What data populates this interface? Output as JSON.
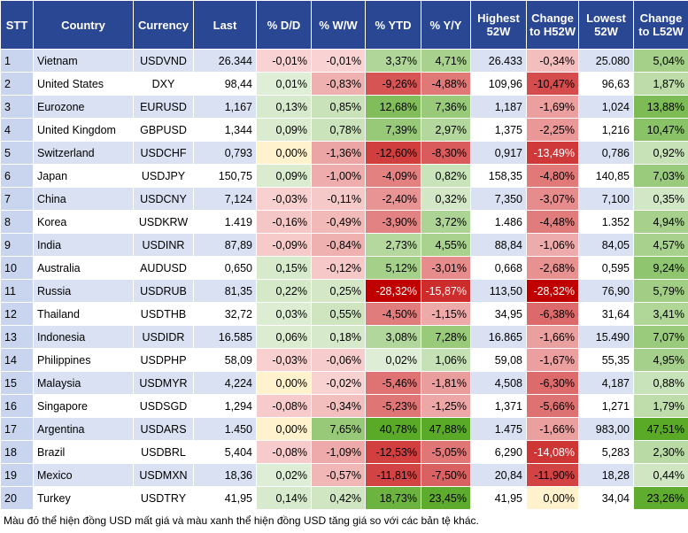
{
  "table": {
    "header": [
      "STT",
      "Country",
      "Currency",
      "Last",
      "% D/D",
      "% W/W",
      "% YTD",
      "% Y/Y",
      "Highest 52W",
      "Change to H52W",
      "Lowest 52W",
      "Change to L52W"
    ],
    "rows": [
      [
        "1",
        "Vietnam",
        "USDVND",
        "26.344",
        "-0,01%",
        "-0,01%",
        "3,37%",
        "4,71%",
        "26.433",
        "-0,34%",
        "25.080",
        "5,04%"
      ],
      [
        "2",
        "United States",
        "DXY",
        "98,44",
        "0,01%",
        "-0,83%",
        "-9,26%",
        "-4,88%",
        "109,96",
        "-10,47%",
        "96,63",
        "1,87%"
      ],
      [
        "3",
        "Eurozone",
        "EURUSD",
        "1,167",
        "0,13%",
        "0,85%",
        "12,68%",
        "7,36%",
        "1,187",
        "-1,69%",
        "1,024",
        "13,88%"
      ],
      [
        "4",
        "United Kingdom",
        "GBPUSD",
        "1,344",
        "0,09%",
        "0,78%",
        "7,39%",
        "2,97%",
        "1,375",
        "-2,25%",
        "1,216",
        "10,47%"
      ],
      [
        "5",
        "Switzerland",
        "USDCHF",
        "0,793",
        "0,00%",
        "-1,36%",
        "-12,60%",
        "-8,30%",
        "0,917",
        "-13,49%",
        "0,786",
        "0,92%"
      ],
      [
        "6",
        "Japan",
        "USDJPY",
        "150,75",
        "0,09%",
        "-1,00%",
        "-4,09%",
        "0,82%",
        "158,35",
        "-4,80%",
        "140,85",
        "7,03%"
      ],
      [
        "7",
        "China",
        "USDCNY",
        "7,124",
        "-0,03%",
        "-0,11%",
        "-2,40%",
        "0,32%",
        "7,350",
        "-3,07%",
        "7,100",
        "0,35%"
      ],
      [
        "8",
        "Korea",
        "USDKRW",
        "1.419",
        "-0,16%",
        "-0,49%",
        "-3,90%",
        "3,72%",
        "1.486",
        "-4,48%",
        "1.352",
        "4,94%"
      ],
      [
        "9",
        "India",
        "USDINR",
        "87,89",
        "-0,09%",
        "-0,84%",
        "2,73%",
        "4,55%",
        "88,84",
        "-1,06%",
        "84,05",
        "4,57%"
      ],
      [
        "10",
        "Australia",
        "AUDUSD",
        "0,650",
        "0,15%",
        "-0,12%",
        "5,12%",
        "-3,01%",
        "0,668",
        "-2,68%",
        "0,595",
        "9,24%"
      ],
      [
        "11",
        "Russia",
        "USDRUB",
        "81,35",
        "0,22%",
        "0,25%",
        "-28,32%",
        "-15,87%",
        "113,50",
        "-28,32%",
        "76,90",
        "5,79%"
      ],
      [
        "12",
        "Thailand",
        "USDTHB",
        "32,72",
        "0,03%",
        "0,55%",
        "-4,50%",
        "-1,15%",
        "34,95",
        "-6,38%",
        "31,64",
        "3,41%"
      ],
      [
        "13",
        "Indonesia",
        "USDIDR",
        "16.585",
        "0,06%",
        "0,18%",
        "3,08%",
        "7,28%",
        "16.865",
        "-1,66%",
        "15.490",
        "7,07%"
      ],
      [
        "14",
        "Philippines",
        "USDPHP",
        "58,09",
        "-0,03%",
        "-0,06%",
        "0,02%",
        "1,06%",
        "59,08",
        "-1,67%",
        "55,35",
        "4,95%"
      ],
      [
        "15",
        "Malaysia",
        "USDMYR",
        "4,224",
        "0,00%",
        "-0,02%",
        "-5,46%",
        "-1,81%",
        "4,508",
        "-6,30%",
        "4,187",
        "0,88%"
      ],
      [
        "16",
        "Singapore",
        "USDSGD",
        "1,294",
        "-0,08%",
        "-0,34%",
        "-5,23%",
        "-1,25%",
        "1,371",
        "-5,66%",
        "1,271",
        "1,79%"
      ],
      [
        "17",
        "Argentina",
        "USDARS",
        "1.450",
        "0,00%",
        "7,65%",
        "40,78%",
        "47,88%",
        "1.475",
        "-1,66%",
        "983,00",
        "47,51%"
      ],
      [
        "18",
        "Brazil",
        "USDBRL",
        "5,404",
        "-0,08%",
        "-1,09%",
        "-12,53%",
        "-5,05%",
        "6,290",
        "-14,08%",
        "5,283",
        "2,30%"
      ],
      [
        "19",
        "Mexico",
        "USDMXN",
        "18,36",
        "0,02%",
        "-0,57%",
        "-11,81%",
        "-7,50%",
        "20,84",
        "-11,90%",
        "18,28",
        "0,44%"
      ],
      [
        "20",
        "Turkey",
        "USDTRY",
        "41,95",
        "0,14%",
        "0,42%",
        "18,73%",
        "23,45%",
        "41,95",
        "0,00%",
        "34,04",
        "23,26%"
      ]
    ]
  },
  "footer": "Màu đỏ thể hiện đồng USD mất giá và màu xanh thể hiện đồng USD tăng giá so với các bản tệ khác."
}
